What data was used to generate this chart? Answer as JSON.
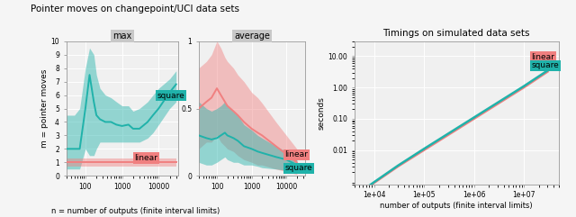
{
  "title_left": "Pointer moves on changepoint/UCI data sets",
  "title_right": "Timings on simulated data sets",
  "panel1_title": "max",
  "panel2_title": "average",
  "ylabel_left": "m = pointer moves",
  "ylabel_right": "seconds",
  "xlabel_left": "n = number of outputs (finite interval limits)",
  "xlabel_right": "number of outputs (finite interval limits)",
  "color_linear": "#f08080",
  "color_square": "#20b2aa",
  "bg_panel_header": "#c8c8c8",
  "bg_plot": "#f0f0f0",
  "bg_fig": "#f5f5f5",
  "grid_color": "#ffffff",
  "sq_max_x": [
    30,
    50,
    70,
    100,
    130,
    170,
    200,
    250,
    350,
    500,
    700,
    1000,
    1500,
    2000,
    3000,
    5000,
    7000,
    10000,
    20000,
    30000
  ],
  "sq_max_mean": [
    2.0,
    2.0,
    2.0,
    5.0,
    7.5,
    5.5,
    4.5,
    4.2,
    4.0,
    4.0,
    3.8,
    3.7,
    3.8,
    3.5,
    3.5,
    4.0,
    4.5,
    5.0,
    6.2,
    6.8
  ],
  "sq_max_lo": [
    0.5,
    0.5,
    0.5,
    2.0,
    1.5,
    1.5,
    2.0,
    2.5,
    2.5,
    2.5,
    2.5,
    2.5,
    2.5,
    2.5,
    2.5,
    2.8,
    3.2,
    3.8,
    5.0,
    5.5
  ],
  "sq_max_hi": [
    4.5,
    4.5,
    5.0,
    8.0,
    9.5,
    9.0,
    7.5,
    6.5,
    6.0,
    5.8,
    5.5,
    5.2,
    5.2,
    4.8,
    5.0,
    5.5,
    6.0,
    6.5,
    7.2,
    7.8
  ],
  "lin_max_x": [
    30,
    50,
    70,
    100,
    200,
    500,
    1000,
    3000,
    10000,
    30000
  ],
  "lin_max_mean": [
    1.0,
    1.0,
    1.0,
    1.0,
    1.0,
    1.0,
    1.0,
    1.0,
    1.0,
    1.0
  ],
  "lin_max_lo": [
    0.7,
    0.7,
    0.7,
    0.7,
    0.7,
    0.7,
    0.7,
    0.7,
    0.7,
    0.7
  ],
  "lin_max_hi": [
    1.3,
    1.3,
    1.3,
    1.3,
    1.3,
    1.3,
    1.3,
    1.3,
    1.3,
    1.3
  ],
  "sq_avg_x": [
    30,
    50,
    70,
    100,
    130,
    170,
    200,
    300,
    400,
    600,
    1000,
    1500,
    2000,
    5000,
    10000,
    20000
  ],
  "sq_avg_mean": [
    0.3,
    0.28,
    0.27,
    0.28,
    0.3,
    0.32,
    0.3,
    0.28,
    0.26,
    0.22,
    0.2,
    0.18,
    0.17,
    0.14,
    0.12,
    0.08
  ],
  "sq_avg_lo": [
    0.1,
    0.08,
    0.08,
    0.1,
    0.12,
    0.14,
    0.12,
    0.1,
    0.1,
    0.08,
    0.08,
    0.07,
    0.06,
    0.05,
    0.04,
    0.02
  ],
  "sq_avg_hi": [
    0.55,
    0.5,
    0.48,
    0.5,
    0.52,
    0.55,
    0.52,
    0.48,
    0.45,
    0.38,
    0.34,
    0.3,
    0.28,
    0.22,
    0.18,
    0.14
  ],
  "lin_avg_x": [
    30,
    50,
    70,
    100,
    130,
    170,
    200,
    300,
    400,
    600,
    1000,
    1500,
    2000,
    5000,
    10000,
    20000
  ],
  "lin_avg_mean": [
    0.5,
    0.55,
    0.58,
    0.65,
    0.6,
    0.55,
    0.52,
    0.48,
    0.45,
    0.4,
    0.35,
    0.32,
    0.3,
    0.22,
    0.16,
    0.1
  ],
  "lin_avg_lo": [
    0.2,
    0.25,
    0.25,
    0.3,
    0.25,
    0.22,
    0.2,
    0.18,
    0.15,
    0.12,
    0.1,
    0.08,
    0.08,
    0.05,
    0.03,
    0.01
  ],
  "lin_avg_hi": [
    0.8,
    0.85,
    0.9,
    1.0,
    0.95,
    0.88,
    0.85,
    0.8,
    0.75,
    0.7,
    0.62,
    0.58,
    0.54,
    0.4,
    0.3,
    0.2
  ],
  "tim_x": [
    4000,
    6000,
    10000,
    30000,
    100000,
    300000,
    1000000,
    3000000,
    10000000,
    30000000
  ],
  "lin_tim": [
    0.0003,
    0.0005,
    0.0009,
    0.003,
    0.01,
    0.03,
    0.1,
    0.3,
    1.0,
    3.2
  ],
  "sq_tim": [
    0.00032,
    0.00053,
    0.00095,
    0.0032,
    0.011,
    0.033,
    0.11,
    0.33,
    1.1,
    3.5
  ]
}
